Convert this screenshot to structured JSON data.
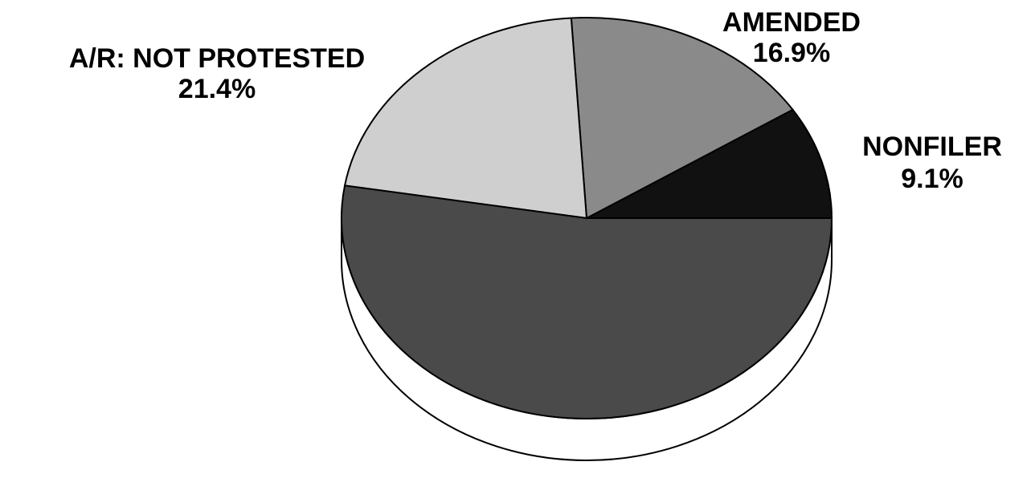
{
  "chart_data": {
    "type": "pie",
    "categories": [
      "NONFILER",
      "AMENDED",
      "A/R: NOT PROTESTED",
      null
    ],
    "values": [
      9.1,
      16.9,
      21.4,
      52.6
    ],
    "value_labels": [
      "9.1%",
      "16.9%",
      "21.4%",
      null
    ],
    "colors": [
      "#111111",
      "#8a8a8a",
      "#cfcfcf",
      "#4a4a4a"
    ]
  }
}
